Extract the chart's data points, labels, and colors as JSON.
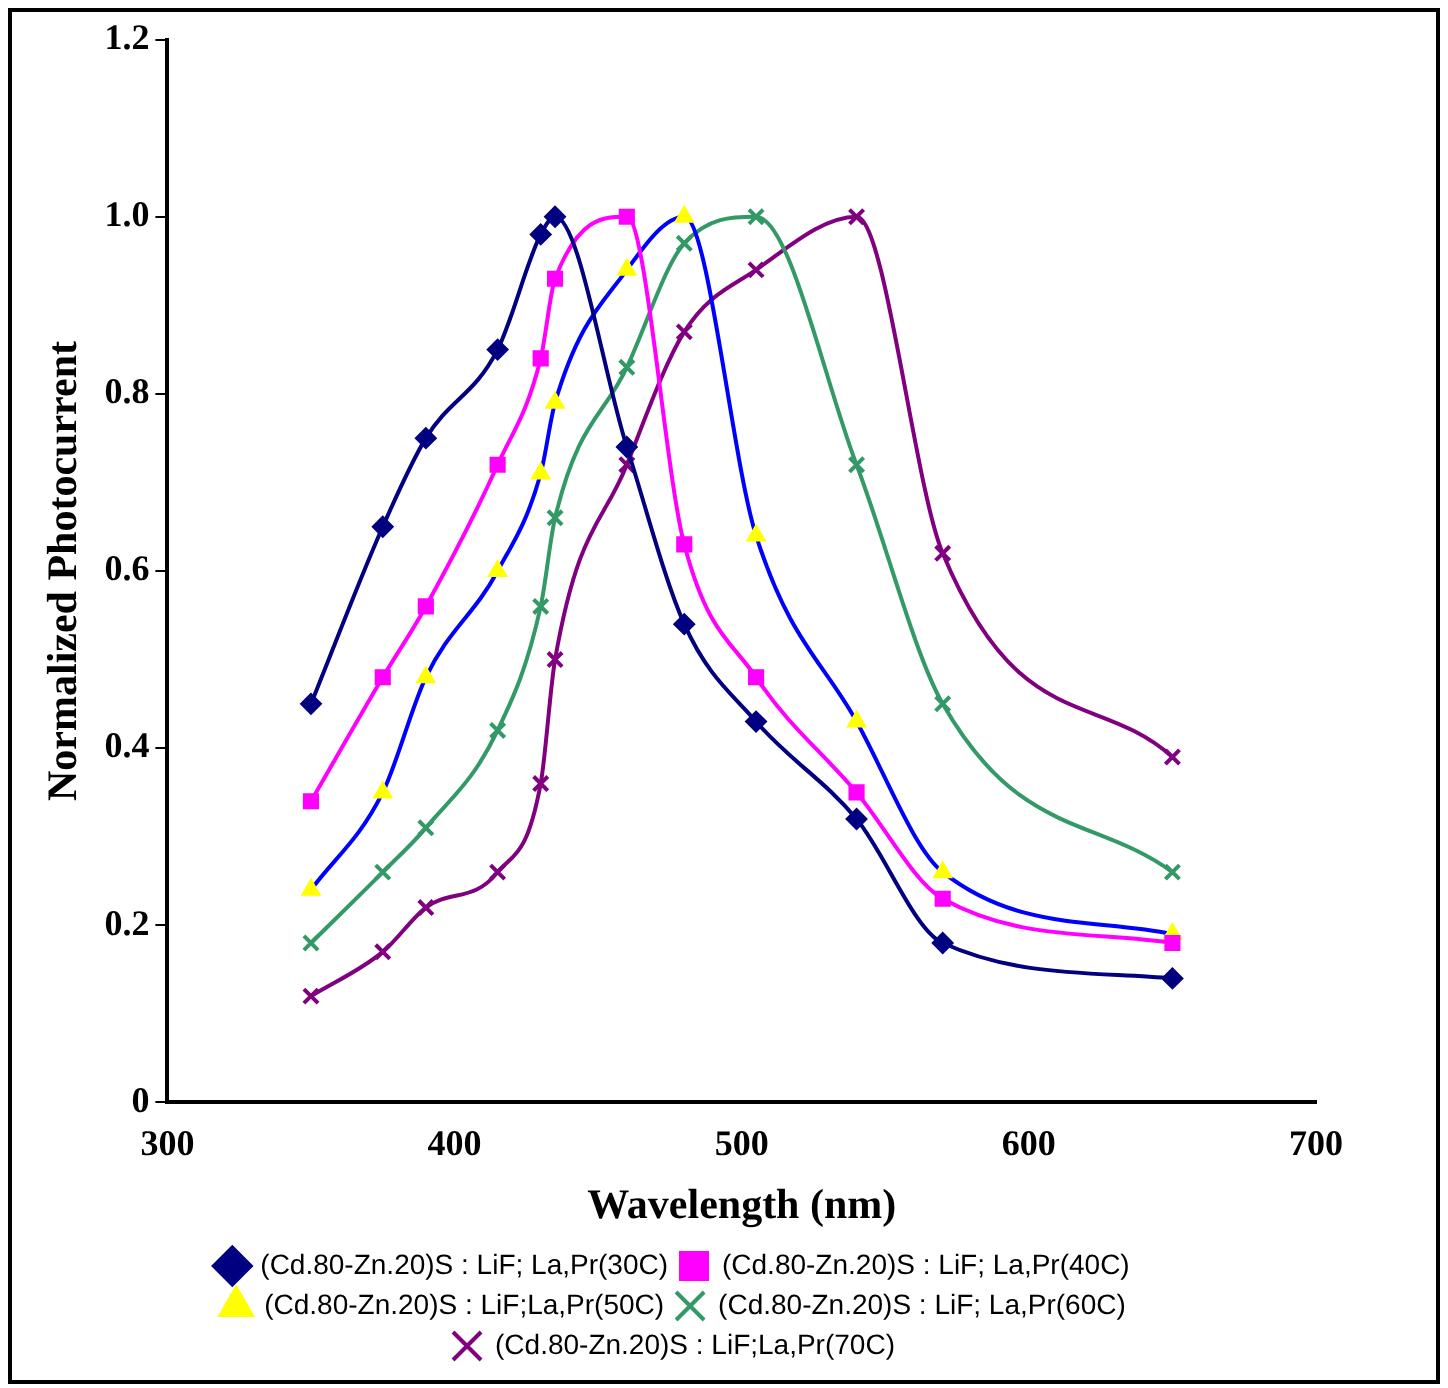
{
  "chart_data": {
    "type": "line",
    "xlabel": "Wavelength (nm)",
    "ylabel": "Normalized Photocurrent",
    "x": [
      350,
      375,
      390,
      415,
      430,
      435,
      460,
      480,
      505,
      540,
      570,
      650
    ],
    "xlim": [
      300,
      700
    ],
    "xticks": [
      300,
      400,
      500,
      600,
      700
    ],
    "ylim": [
      0,
      1.2
    ],
    "yticks": [
      0,
      {
        "value": 0.2,
        "label": "0.2"
      },
      {
        "value": 0.4,
        "label": "0.4"
      },
      {
        "value": 0.6,
        "label": "0.6"
      },
      {
        "value": 0.8,
        "label": "0.8"
      },
      {
        "value": 1,
        "label": "1.0"
      },
      {
        "value": 1.2,
        "label": "1.2"
      }
    ],
    "grid": false,
    "legend": "bottom",
    "line_style": "solid",
    "series": [
      {
        "name": "(Cd.80-Zn.20)S : LiF; La,Pr(30C)",
        "color": "#000080",
        "marker": "diamond",
        "values": [
          0.45,
          0.65,
          0.75,
          0.85,
          0.98,
          1.0,
          0.74,
          0.54,
          0.43,
          0.32,
          0.18,
          0.14
        ]
      },
      {
        "name": "(Cd.80-Zn.20)S : LiF; La,Pr(40C)",
        "color": "#ff00ff",
        "marker": "square",
        "values": [
          0.34,
          0.48,
          0.56,
          0.72,
          0.84,
          0.93,
          1.0,
          0.63,
          0.48,
          0.35,
          0.23,
          0.18
        ]
      },
      {
        "name": "(Cd.80-Zn.20)S : LiF;La,Pr(50C)",
        "color": "#0000ff",
        "marker": "triangle",
        "values": [
          0.24,
          0.35,
          0.48,
          0.6,
          0.71,
          0.79,
          0.94,
          1.0,
          0.64,
          0.43,
          0.26,
          0.19
        ]
      },
      {
        "name": "(Cd.80-Zn.20)S : LiF; La,Pr(60C)",
        "color": "#339966",
        "marker": "cross",
        "values": [
          0.18,
          0.26,
          0.31,
          0.42,
          0.56,
          0.66,
          0.83,
          0.97,
          1.0,
          0.72,
          0.45,
          0.26
        ]
      },
      {
        "name": "(Cd.80-Zn.20)S : LiF;La,Pr(70C)",
        "color": "#800080",
        "marker": "cross",
        "values": [
          0.12,
          0.17,
          0.22,
          0.26,
          0.36,
          0.5,
          0.72,
          0.87,
          0.94,
          1.0,
          0.62,
          0.39
        ]
      }
    ]
  }
}
